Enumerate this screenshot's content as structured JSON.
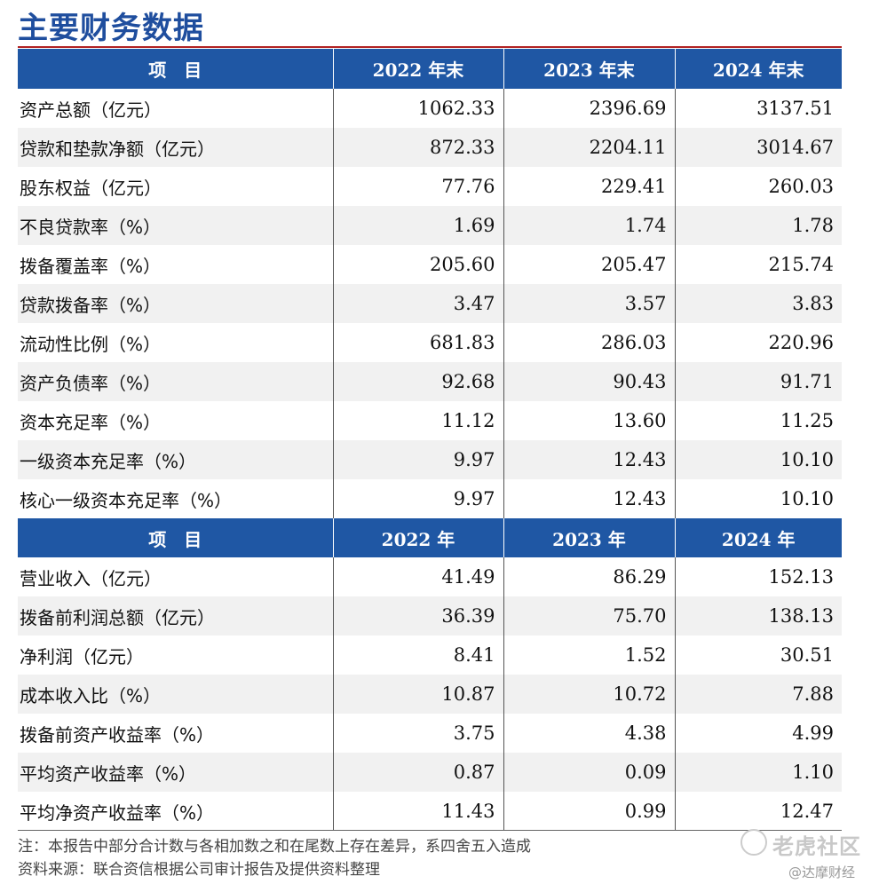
{
  "title": "主要财务数据",
  "table1": {
    "headers": [
      "项　目",
      "2022 年末",
      "2023 年末",
      "2024 年末"
    ],
    "rows": [
      {
        "label": "资产总额（亿元）",
        "v2022": "1062.33",
        "v2023": "2396.69",
        "v2024": "3137.51"
      },
      {
        "label": "贷款和垫款净额（亿元）",
        "v2022": "872.33",
        "v2023": "2204.11",
        "v2024": "3014.67"
      },
      {
        "label": "股东权益（亿元）",
        "v2022": "77.76",
        "v2023": "229.41",
        "v2024": "260.03"
      },
      {
        "label": "不良贷款率（%）",
        "v2022": "1.69",
        "v2023": "1.74",
        "v2024": "1.78"
      },
      {
        "label": "拨备覆盖率（%）",
        "v2022": "205.60",
        "v2023": "205.47",
        "v2024": "215.74"
      },
      {
        "label": "贷款拨备率（%）",
        "v2022": "3.47",
        "v2023": "3.57",
        "v2024": "3.83"
      },
      {
        "label": "流动性比例（%）",
        "v2022": "681.83",
        "v2023": "286.03",
        "v2024": "220.96"
      },
      {
        "label": "资产负债率（%）",
        "v2022": "92.68",
        "v2023": "90.43",
        "v2024": "91.71"
      },
      {
        "label": "资本充足率（%）",
        "v2022": "11.12",
        "v2023": "13.60",
        "v2024": "11.25"
      },
      {
        "label": "一级资本充足率（%）",
        "v2022": "9.97",
        "v2023": "12.43",
        "v2024": "10.10"
      },
      {
        "label": "核心一级资本充足率（%）",
        "v2022": "9.97",
        "v2023": "12.43",
        "v2024": "10.10"
      }
    ]
  },
  "table2": {
    "headers": [
      "项　目",
      "2022 年",
      "2023 年",
      "2024 年"
    ],
    "rows": [
      {
        "label": "营业收入（亿元）",
        "v2022": "41.49",
        "v2023": "86.29",
        "v2024": "152.13"
      },
      {
        "label": "拨备前利润总额（亿元）",
        "v2022": "36.39",
        "v2023": "75.70",
        "v2024": "138.13"
      },
      {
        "label": "净利润（亿元）",
        "v2022": "8.41",
        "v2023": "1.52",
        "v2024": "30.51"
      },
      {
        "label": "成本收入比（%）",
        "v2022": "10.87",
        "v2023": "10.72",
        "v2024": "7.88"
      },
      {
        "label": "拨备前资产收益率（%）",
        "v2022": "3.75",
        "v2023": "4.38",
        "v2024": "4.99"
      },
      {
        "label": "平均资产收益率（%）",
        "v2022": "0.87",
        "v2023": "0.09",
        "v2024": "1.10"
      },
      {
        "label": "平均净资产收益率（%）",
        "v2022": "11.43",
        "v2023": "0.99",
        "v2024": "12.47"
      }
    ]
  },
  "notes": {
    "note": "注：本报告中部分合计数与各相加数之和在尾数上存在差异，系四舍五入造成",
    "source": "资料来源：联合资信根据公司审计报告及提供资料整理"
  },
  "watermarks": {
    "tiger": "老虎社区",
    "damo": "@达摩财经"
  }
}
